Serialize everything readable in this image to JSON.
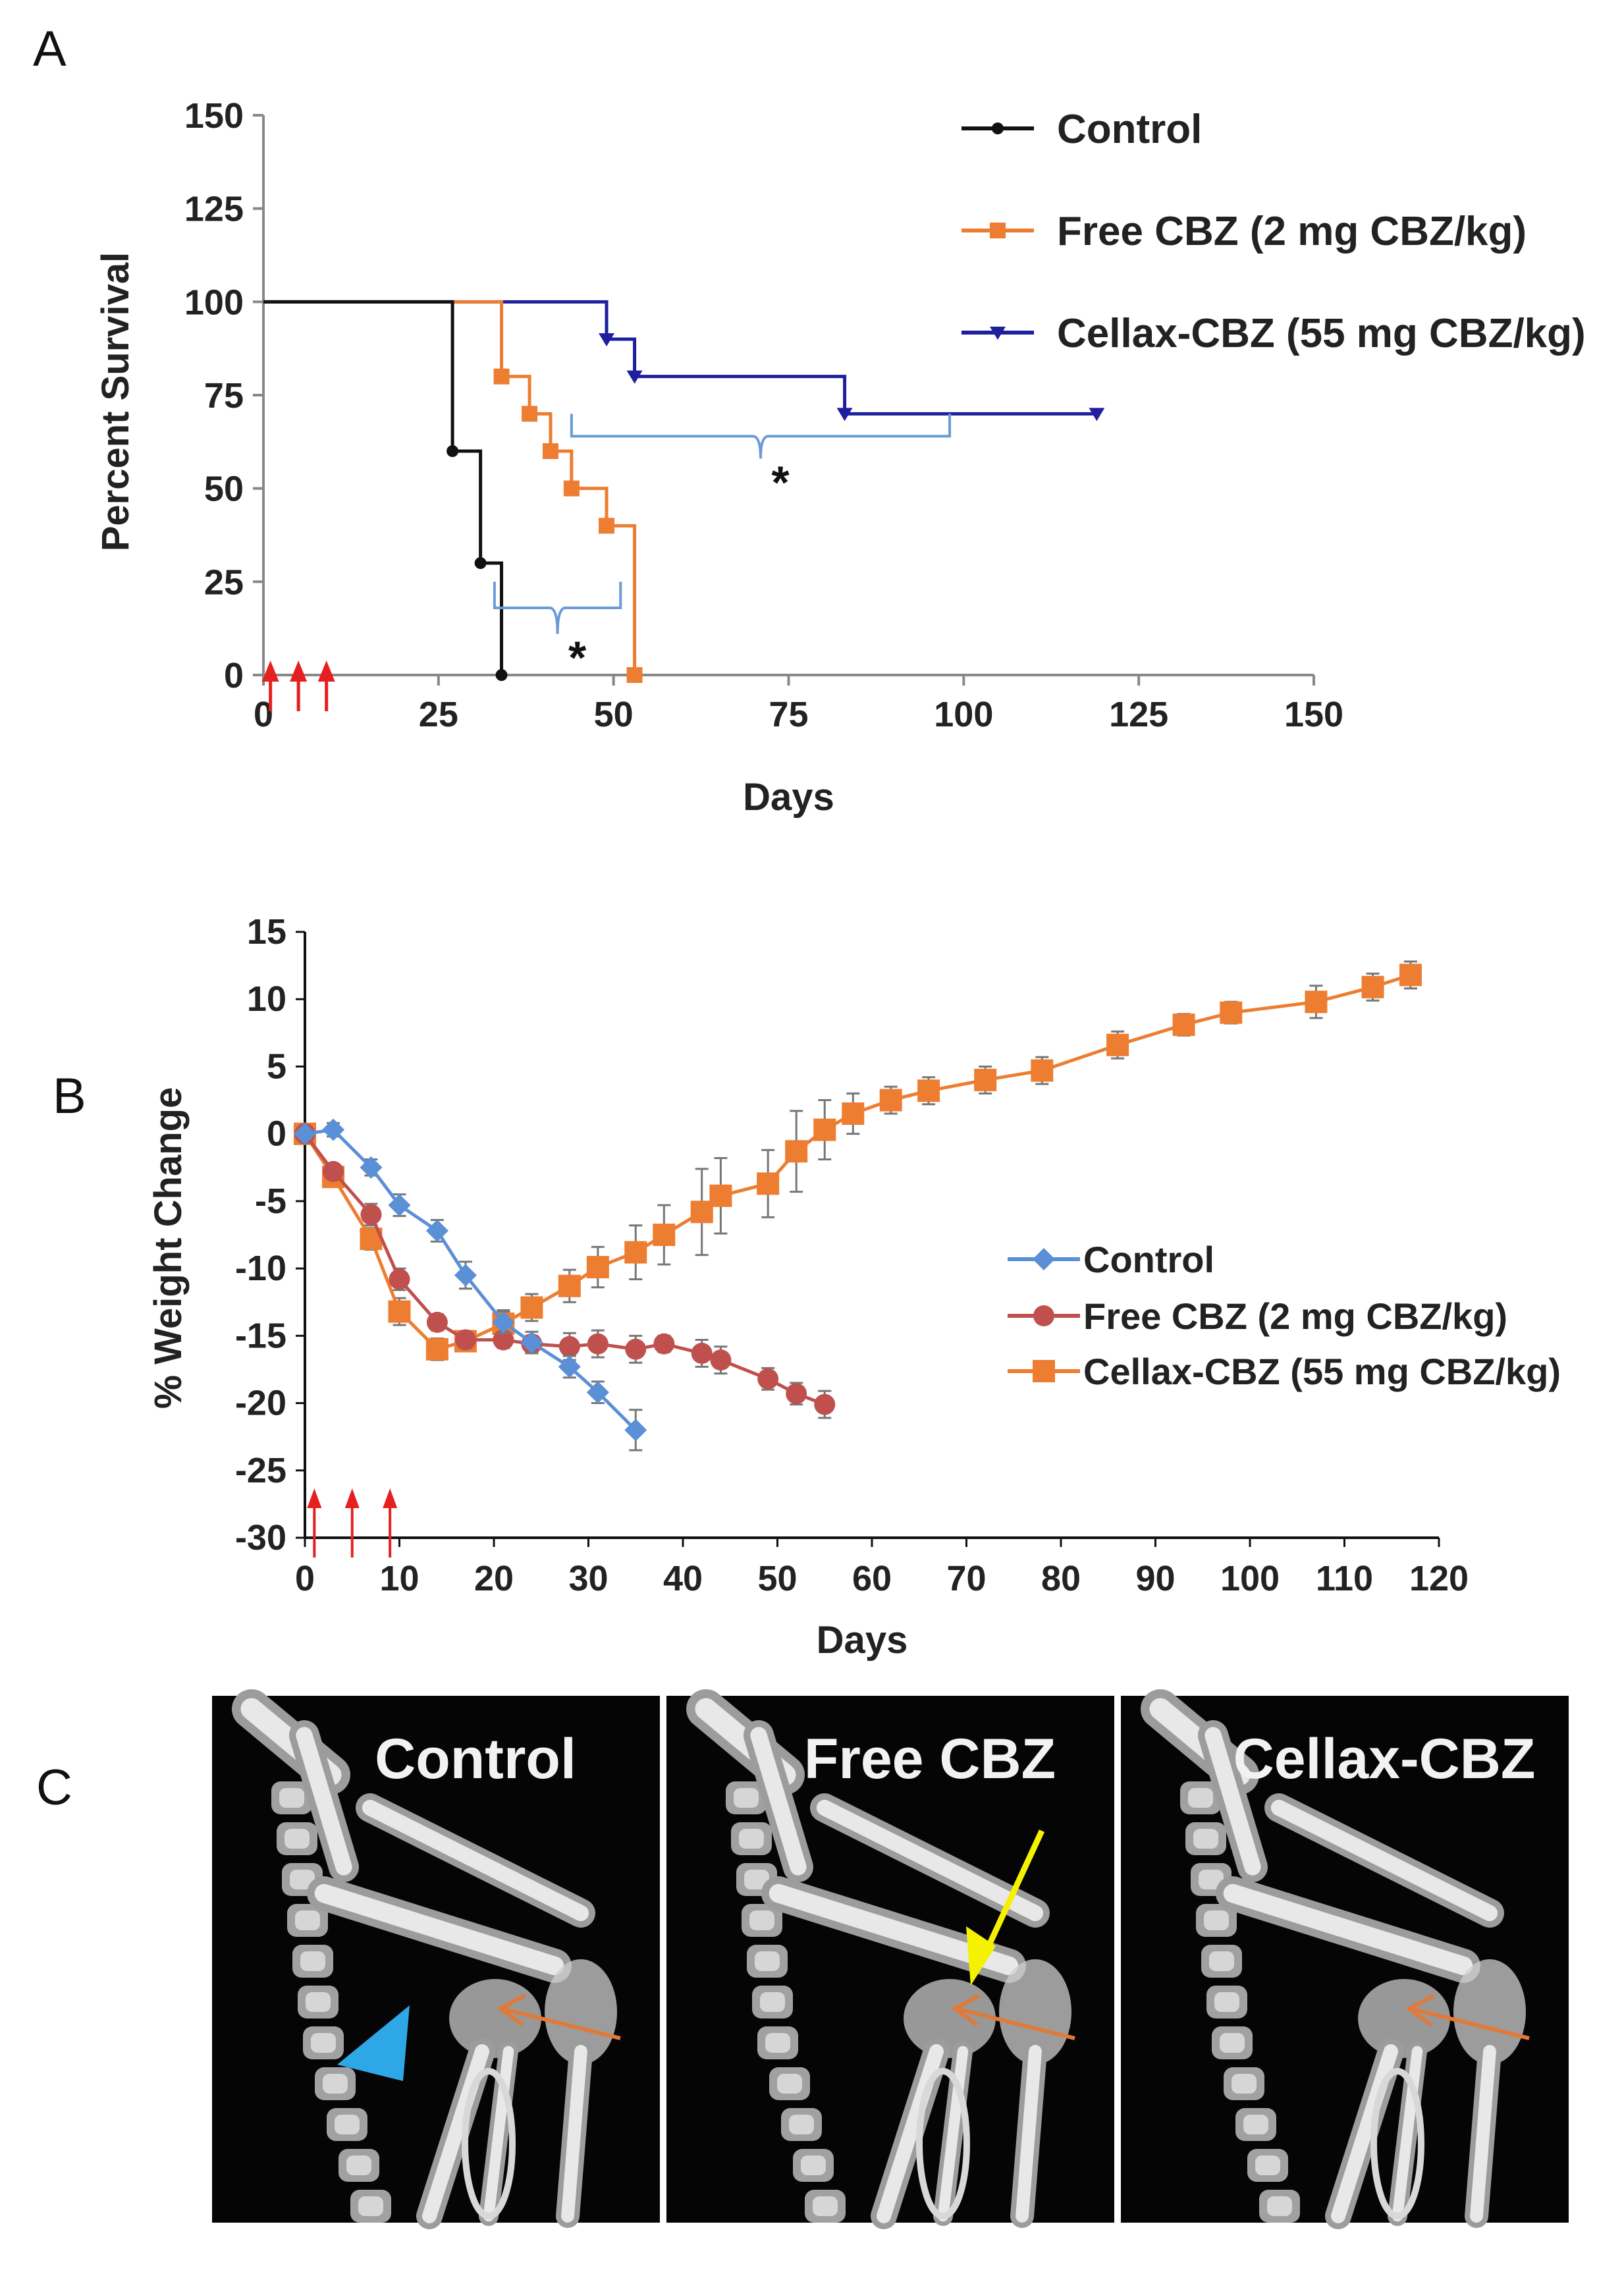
{
  "panel_labels": {
    "a": "A",
    "b": "B",
    "c": "C"
  },
  "colors": {
    "control_a": "#111111",
    "free_cbz_a": "#ed7d31",
    "cellax_a": "#1f1f9e",
    "control_b": "#5b8fd6",
    "free_cbz_b": "#c0504d",
    "cellax_b": "#ed7d31",
    "bracket": "#6a9bd8",
    "arrow_red": "#e52020",
    "arrow_orange": "#e07a3a",
    "arrow_yellow": "#f5f200",
    "arrowhead_cyan": "#2ea7e6"
  },
  "chart_data": [
    {
      "type": "line",
      "subtype": "kaplan-meier",
      "title": "",
      "xlabel": "Days",
      "ylabel": "Percent Survival",
      "xlim": [
        0,
        150
      ],
      "ylim": [
        0,
        150
      ],
      "x_ticks": [
        "0",
        "25",
        "50",
        "75",
        "100",
        "125",
        "150"
      ],
      "y_ticks": [
        "0",
        "25",
        "50",
        "75",
        "100",
        "125",
        "150"
      ],
      "legend": [
        "Control",
        "Free CBZ (2 mg CBZ/kg)",
        "Cellax-CBZ (55 mg CBZ/kg)"
      ],
      "legend_position": "top-right",
      "series": [
        {
          "name": "Control",
          "steps": [
            [
              0,
              100
            ],
            [
              27,
              60
            ],
            [
              31,
              30
            ],
            [
              34,
              0
            ]
          ],
          "markers": [
            [
              27,
              60
            ],
            [
              31,
              30
            ],
            [
              34,
              0
            ]
          ]
        },
        {
          "name": "Free CBZ (2 mg CBZ/kg)",
          "steps": [
            [
              0,
              100
            ],
            [
              34,
              80
            ],
            [
              38,
              70
            ],
            [
              41,
              60
            ],
            [
              44,
              50
            ],
            [
              49,
              40
            ],
            [
              53,
              0
            ]
          ],
          "markers": [
            [
              34,
              80
            ],
            [
              38,
              70
            ],
            [
              41,
              60
            ],
            [
              44,
              50
            ],
            [
              49,
              40
            ],
            [
              53,
              0
            ]
          ]
        },
        {
          "name": "Cellax-CBZ (55 mg CBZ/kg)",
          "steps": [
            [
              0,
              100
            ],
            [
              49,
              90
            ],
            [
              53,
              80
            ],
            [
              83,
              70
            ]
          ],
          "end": 119,
          "markers": [
            [
              49,
              90
            ],
            [
              53,
              80
            ],
            [
              83,
              70
            ],
            [
              119,
              70
            ]
          ]
        }
      ],
      "treatment_days": [
        1,
        5,
        9
      ],
      "annotations": [
        {
          "text": "*",
          "label": "Control vs Free CBZ",
          "bracket_x": [
            33,
            51
          ],
          "y_top": 25,
          "y_bottom": 11
        },
        {
          "text": "*",
          "label": "Free CBZ vs Cellax-CBZ",
          "bracket_x": [
            44,
            98
          ],
          "y_top": 70,
          "y_bottom": 58
        }
      ]
    },
    {
      "type": "line",
      "title": "",
      "xlabel": "Days",
      "ylabel": "% Weight Change",
      "xlim": [
        0,
        120
      ],
      "ylim": [
        -30,
        15
      ],
      "x_ticks": [
        "0",
        "10",
        "20",
        "30",
        "40",
        "50",
        "60",
        "70",
        "80",
        "90",
        "100",
        "110",
        "120"
      ],
      "y_ticks": [
        "15",
        "10",
        "5",
        "0",
        "-5",
        "-10",
        "-15",
        "-20",
        "-25",
        "-30"
      ],
      "legend": [
        "Control",
        "Free CBZ (2 mg CBZ/kg)",
        "Cellax-CBZ (55 mg CBZ/kg)"
      ],
      "legend_position": "center-right",
      "series": [
        {
          "name": "Control",
          "marker": "diamond",
          "x": [
            0,
            3,
            7,
            10,
            14,
            17,
            21,
            24,
            28,
            31,
            35
          ],
          "y": [
            0,
            0.3,
            -2.5,
            -5.3,
            -7.2,
            -10.5,
            -14,
            -15.5,
            -17.3,
            -19.2,
            -22
          ],
          "err": [
            0.3,
            0.5,
            0.6,
            0.8,
            0.8,
            1,
            0.8,
            0.8,
            0.8,
            0.8,
            1.5
          ]
        },
        {
          "name": "Free CBZ (2 mg CBZ/kg)",
          "marker": "circle",
          "x": [
            0,
            3,
            7,
            10,
            14,
            17,
            21,
            24,
            28,
            31,
            35,
            38,
            42,
            44,
            49,
            52,
            55
          ],
          "y": [
            0,
            -2.8,
            -6,
            -10.8,
            -14,
            -15.3,
            -15.3,
            -15.6,
            -15.8,
            -15.6,
            -16,
            -15.6,
            -16.3,
            -16.8,
            -18.2,
            -19.3,
            -20.1
          ],
          "err": [
            0.3,
            0.5,
            0.8,
            0.8,
            0.6,
            0.6,
            0.6,
            0.6,
            1,
            1,
            1,
            0.6,
            1,
            1,
            0.8,
            0.8,
            1
          ]
        },
        {
          "name": "Cellax-CBZ (55 mg CBZ/kg)",
          "marker": "square",
          "x": [
            0,
            3,
            7,
            10,
            14,
            17,
            21,
            24,
            28,
            31,
            35,
            38,
            42,
            44,
            49,
            52,
            55,
            58,
            62,
            66,
            72,
            78,
            86,
            93,
            98,
            107,
            113,
            117
          ],
          "y": [
            0,
            -3.2,
            -7.8,
            -13.2,
            -16,
            -15.4,
            -14.1,
            -12.9,
            -11.3,
            -9.9,
            -8.8,
            -7.5,
            -5.8,
            -4.6,
            -3.7,
            -1.3,
            0.3,
            1.5,
            2.5,
            3.2,
            4,
            4.7,
            6.6,
            8.1,
            9,
            9.8,
            10.9,
            11.8
          ],
          "err": [
            0.3,
            0.5,
            0.8,
            1,
            0.8,
            0.6,
            1,
            1,
            1.2,
            1.5,
            2,
            2.2,
            3.2,
            2.8,
            2.5,
            3,
            2.2,
            1.5,
            1,
            1,
            1,
            1,
            1,
            0.8,
            0.8,
            1.2,
            1,
            1
          ]
        }
      ],
      "treatment_days": [
        1,
        5,
        9
      ]
    }
  ],
  "panel_c": {
    "labels": [
      "Control",
      "Free CBZ",
      "Cellax-CBZ"
    ]
  }
}
